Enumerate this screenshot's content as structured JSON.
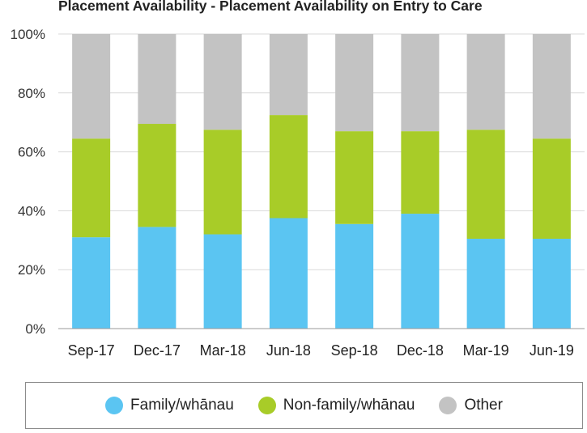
{
  "chart_data": {
    "type": "bar",
    "stacked": true,
    "title": "Placement Availability - Placement Availability on Entry to Care",
    "categories": [
      "Sep-17",
      "Dec-17",
      "Mar-18",
      "Jun-18",
      "Sep-18",
      "Dec-18",
      "Mar-19",
      "Jun-19"
    ],
    "series": [
      {
        "name": "Family/whānau",
        "color": "#5bc5f2",
        "values": [
          31,
          34.5,
          32,
          37.5,
          35.5,
          39,
          30.5,
          30.5
        ]
      },
      {
        "name": "Non-family/whānau",
        "color": "#a8cc28",
        "values": [
          33.5,
          35,
          35.5,
          35,
          31.5,
          28,
          37,
          34
        ]
      },
      {
        "name": "Other",
        "color": "#c3c3c3",
        "values": [
          35.5,
          30.5,
          32.5,
          27.5,
          33,
          33,
          32.5,
          35.5
        ]
      }
    ],
    "yticks": [
      "0%",
      "20%",
      "40%",
      "60%",
      "80%",
      "100%"
    ],
    "ylim": [
      0,
      100
    ],
    "grid": true,
    "legend_position": "bottom"
  }
}
